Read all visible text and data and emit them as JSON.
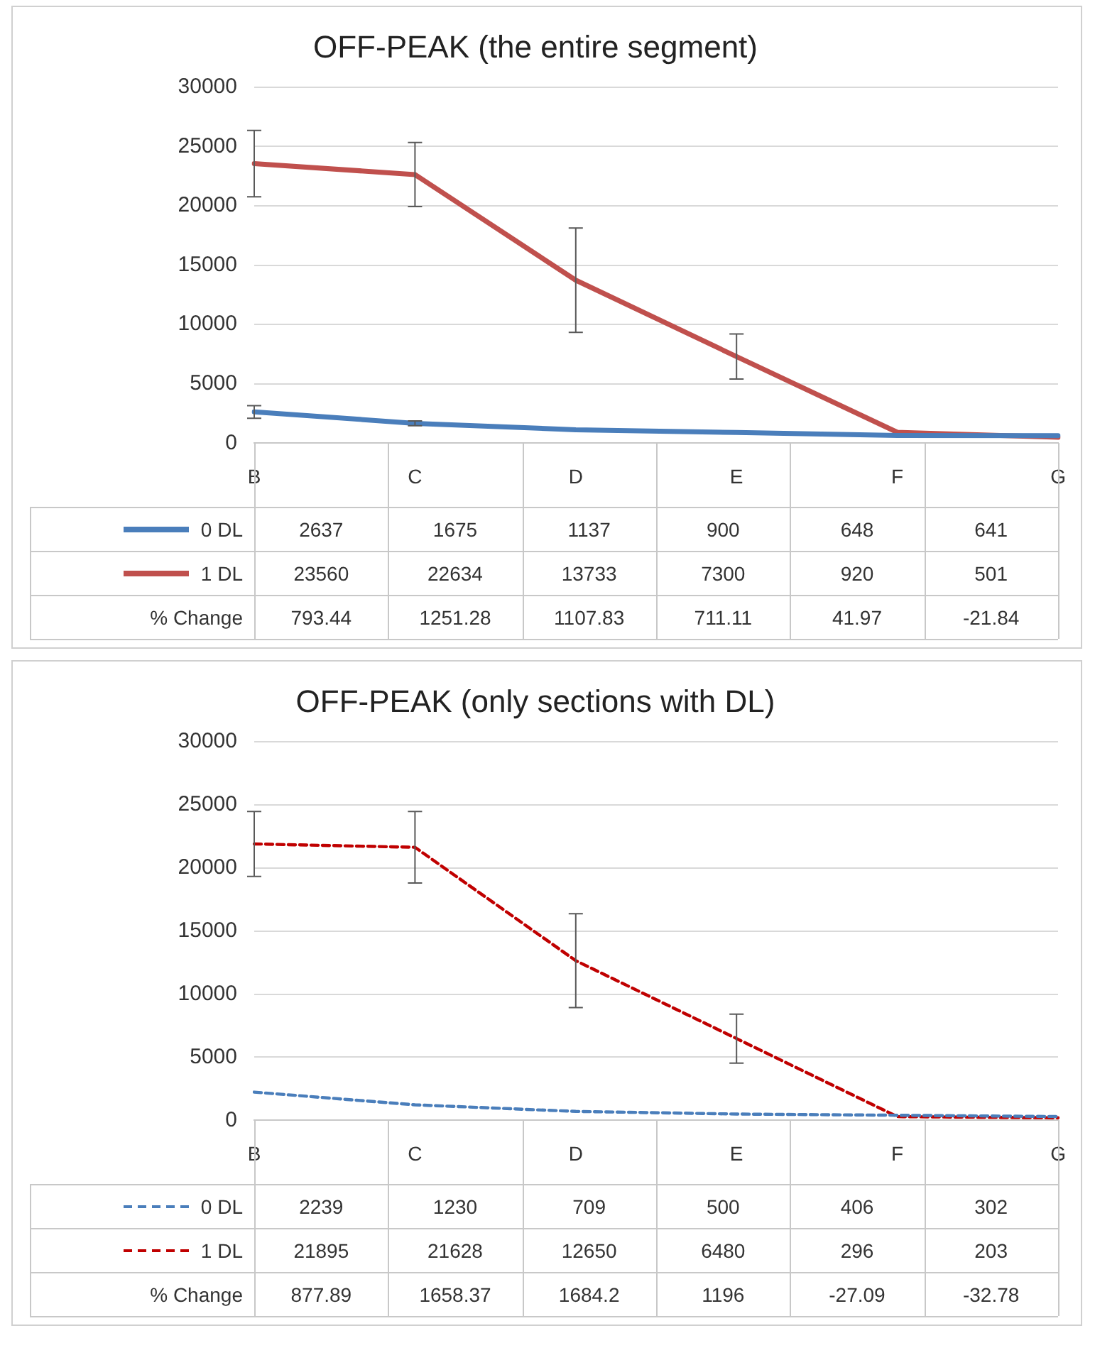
{
  "chart_data": [
    {
      "type": "line",
      "title": "OFF-PEAK (the entire segment)",
      "categories": [
        "B",
        "C",
        "D",
        "E",
        "F",
        "G"
      ],
      "series": [
        {
          "name": "0 DL",
          "color": "#4a7ebb",
          "values": [
            2637,
            1675,
            1137,
            900,
            648,
            641
          ],
          "errors": [
            530,
            200,
            null,
            null,
            null,
            null
          ]
        },
        {
          "name": "1 DL",
          "color": "#c0504d",
          "values": [
            23560,
            22634,
            13733,
            7300,
            920,
            501
          ],
          "errors": [
            2800,
            2700,
            4400,
            1900,
            null,
            null
          ]
        }
      ],
      "ylim": [
        0,
        30000
      ],
      "yticks": [
        0,
        5000,
        10000,
        15000,
        20000,
        25000,
        30000
      ],
      "grid": "y",
      "legend": "bottom",
      "line_style": "solid",
      "data_labels": true,
      "annotations": [
        "% Change",
        "793.44",
        "1251.28",
        "1107.83",
        "711.11",
        "41.97",
        "-21.84"
      ]
    },
    {
      "type": "line",
      "title": "OFF-PEAK (only sections with DL)",
      "categories": [
        "B",
        "C",
        "D",
        "E",
        "F",
        "G"
      ],
      "series": [
        {
          "name": "0 DL",
          "color": "#4a7ebb",
          "values": [
            2239,
            1230,
            709,
            500,
            406,
            302
          ]
        },
        {
          "name": "1 DL",
          "color": "#c00000",
          "values": [
            21895,
            21628,
            12650,
            6480,
            296,
            203
          ],
          "errors": [
            2570,
            2830,
            3720,
            1940,
            null,
            null
          ]
        }
      ],
      "ylim": [
        0,
        30000
      ],
      "yticks": [
        0,
        5000,
        10000,
        15000,
        20000,
        25000,
        30000
      ],
      "grid": "y",
      "legend": "bottom",
      "line_style": "dashed",
      "data_labels": true,
      "annotations": [
        "% Change",
        "877.89",
        "1658.37",
        "1684.2",
        "1196",
        "-27.09",
        "-32.78"
      ]
    }
  ]
}
